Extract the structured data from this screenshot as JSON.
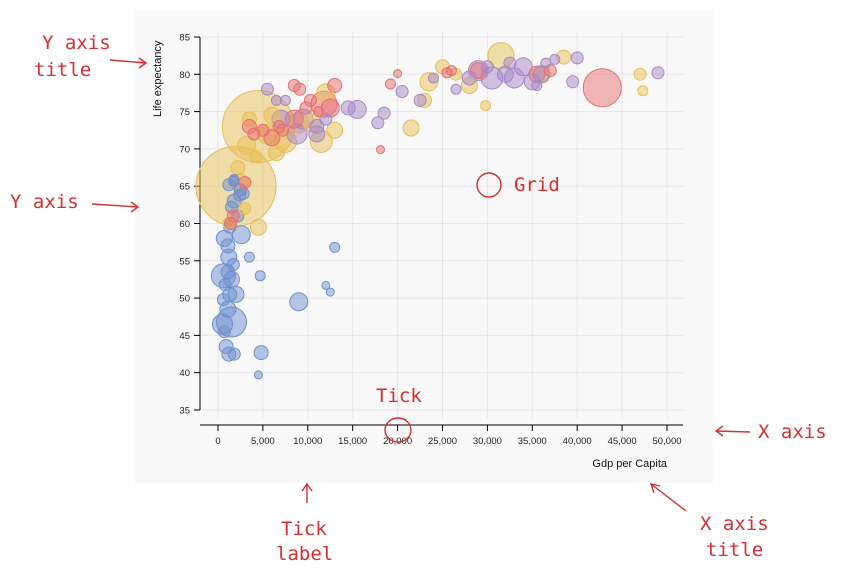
{
  "chart_data": {
    "type": "scatter",
    "title": "",
    "xlabel": "Gdp per Capita",
    "ylabel": "Life expectancy",
    "xlim": [
      -1500,
      51500
    ],
    "ylim": [
      33,
      86
    ],
    "xticks": [
      0,
      5000,
      10000,
      15000,
      20000,
      25000,
      30000,
      35000,
      40000,
      45000,
      50000
    ],
    "xtick_labels": [
      "0",
      "5,000",
      "10,000",
      "15,000",
      "20,000",
      "25,000",
      "30,000",
      "35,000",
      "40,000",
      "45,000",
      "50,000"
    ],
    "yticks": [
      35,
      40,
      45,
      50,
      55,
      60,
      65,
      70,
      75,
      80,
      85
    ],
    "ytick_labels": [
      "35",
      "40",
      "45",
      "50",
      "55",
      "60",
      "65",
      "70",
      "75",
      "80",
      "85"
    ],
    "grid": true,
    "series": [
      {
        "color": "#6f8fcf",
        "points": [
          [
            900,
            43.5,
            7
          ],
          [
            700,
            45.5,
            6
          ],
          [
            500,
            46.5,
            10
          ],
          [
            1500,
            46.8,
            15
          ],
          [
            1200,
            42.5,
            7
          ],
          [
            1800,
            42.5,
            6
          ],
          [
            1100,
            48.5,
            8
          ],
          [
            600,
            49.8,
            6
          ],
          [
            1300,
            50.5,
            7
          ],
          [
            2000,
            50.5,
            8
          ],
          [
            800,
            51.8,
            6
          ],
          [
            1500,
            52.5,
            8
          ],
          [
            600,
            53,
            12
          ],
          [
            1100,
            53.5,
            7
          ],
          [
            1700,
            54.5,
            6
          ],
          [
            1200,
            55.5,
            8
          ],
          [
            3500,
            55.5,
            5
          ],
          [
            4700,
            53,
            5
          ],
          [
            1100,
            57,
            7
          ],
          [
            700,
            58,
            8
          ],
          [
            2600,
            58.5,
            9
          ],
          [
            1300,
            59.5,
            6
          ],
          [
            2200,
            61,
            6
          ],
          [
            1500,
            62.2,
            6
          ],
          [
            1800,
            63,
            7
          ],
          [
            2400,
            63.8,
            6
          ],
          [
            1200,
            65.2,
            6
          ],
          [
            1700,
            65.7,
            5
          ],
          [
            2800,
            64,
            6
          ],
          [
            9000,
            49.5,
            9
          ],
          [
            4800,
            42.7,
            7
          ],
          [
            13000,
            56.8,
            5
          ],
          [
            12000,
            51.7,
            4
          ],
          [
            12500,
            50.8,
            4
          ],
          [
            4500,
            39.7,
            4
          ],
          [
            2500,
            64.5,
            6
          ],
          [
            1800,
            65.9,
            5
          ]
        ]
      },
      {
        "color": "#e8bf55",
        "points": [
          [
            2000,
            65,
            40
          ],
          [
            4500,
            73,
            36
          ],
          [
            1200,
            60,
            6
          ],
          [
            4500,
            59.5,
            8
          ],
          [
            3000,
            62,
            6
          ],
          [
            2200,
            67.5,
            7
          ],
          [
            3200,
            70.5,
            9
          ],
          [
            5500,
            72,
            10
          ],
          [
            6500,
            69.5,
            8
          ],
          [
            7500,
            71,
            11
          ],
          [
            10500,
            73.5,
            9
          ],
          [
            11500,
            71,
            11
          ],
          [
            13000,
            72.5,
            8
          ],
          [
            6000,
            74.5,
            8
          ],
          [
            9000,
            73.5,
            10
          ],
          [
            12000,
            77.5,
            9
          ],
          [
            21500,
            72.8,
            8
          ],
          [
            23000,
            76.5,
            7
          ],
          [
            23500,
            79,
            9
          ],
          [
            25000,
            81,
            7
          ],
          [
            26500,
            80,
            6
          ],
          [
            28000,
            78.5,
            8
          ],
          [
            29800,
            75.8,
            5
          ],
          [
            31500,
            82.5,
            13
          ],
          [
            36000,
            80,
            9
          ],
          [
            38500,
            82.3,
            7
          ],
          [
            47000,
            80,
            6
          ],
          [
            47300,
            77.8,
            5
          ],
          [
            3500,
            74,
            7
          ],
          [
            4200,
            69,
            6
          ],
          [
            2400,
            65.5,
            9
          ]
        ]
      },
      {
        "color": "#e76f6f",
        "points": [
          [
            42800,
            78.2,
            19
          ],
          [
            3000,
            65.5,
            6
          ],
          [
            1700,
            61,
            6
          ],
          [
            1400,
            60,
            6
          ],
          [
            9100,
            78,
            6
          ],
          [
            8500,
            78.5,
            6
          ],
          [
            10300,
            76.5,
            6
          ],
          [
            11800,
            76,
            13
          ],
          [
            13000,
            78.5,
            7
          ],
          [
            12500,
            75.5,
            9
          ],
          [
            19200,
            78.7,
            5
          ],
          [
            18100,
            69.9,
            4
          ],
          [
            26000,
            80.5,
            5
          ],
          [
            3500,
            73,
            7
          ],
          [
            4000,
            72,
            6
          ],
          [
            5000,
            72.5,
            6
          ],
          [
            6000,
            71.5,
            8
          ],
          [
            7200,
            72.5,
            6
          ],
          [
            8500,
            74,
            9
          ],
          [
            9800,
            75.5,
            6
          ],
          [
            11200,
            75,
            5
          ],
          [
            6800,
            73,
            6
          ],
          [
            29000,
            80.5,
            8
          ],
          [
            35500,
            80,
            8
          ],
          [
            37000,
            80.5,
            6
          ],
          [
            25500,
            80.2,
            5
          ],
          [
            20000,
            80.1,
            4
          ]
        ]
      },
      {
        "color": "#a788c8",
        "points": [
          [
            6500,
            76.5,
            5
          ],
          [
            7500,
            76.5,
            5
          ],
          [
            9500,
            74,
            10
          ],
          [
            11000,
            73,
            7
          ],
          [
            12000,
            74,
            6
          ],
          [
            14500,
            75.5,
            7
          ],
          [
            15500,
            75.3,
            9
          ],
          [
            17800,
            73.5,
            6
          ],
          [
            18500,
            74.8,
            6
          ],
          [
            20500,
            77.7,
            6
          ],
          [
            22500,
            76.5,
            6
          ],
          [
            26500,
            78,
            5
          ],
          [
            28000,
            79.5,
            7
          ],
          [
            29000,
            80.5,
            10
          ],
          [
            30500,
            79.5,
            11
          ],
          [
            32000,
            80,
            8
          ],
          [
            33000,
            79.5,
            10
          ],
          [
            34000,
            81,
            9
          ],
          [
            35000,
            79,
            8
          ],
          [
            36000,
            80,
            8
          ],
          [
            36500,
            81.5,
            5
          ],
          [
            37500,
            82,
            5
          ],
          [
            39500,
            79,
            6
          ],
          [
            40000,
            82.2,
            6
          ],
          [
            49000,
            80.2,
            6
          ],
          [
            30000,
            81,
            6
          ],
          [
            24000,
            79.5,
            5
          ],
          [
            32500,
            81.5,
            6
          ],
          [
            35500,
            78.5,
            5
          ],
          [
            5500,
            78,
            6
          ],
          [
            7000,
            74,
            9
          ],
          [
            8800,
            72,
            10
          ],
          [
            11000,
            72,
            8
          ]
        ]
      }
    ]
  },
  "annotations": {
    "y_axis_title": "Y axis\ntitle",
    "y_axis": "Y axis",
    "grid": "Grid",
    "tick": "Tick",
    "x_axis": "X axis",
    "tick_label": "Tick\nlabel",
    "x_axis_title": "X axis\ntitle"
  }
}
